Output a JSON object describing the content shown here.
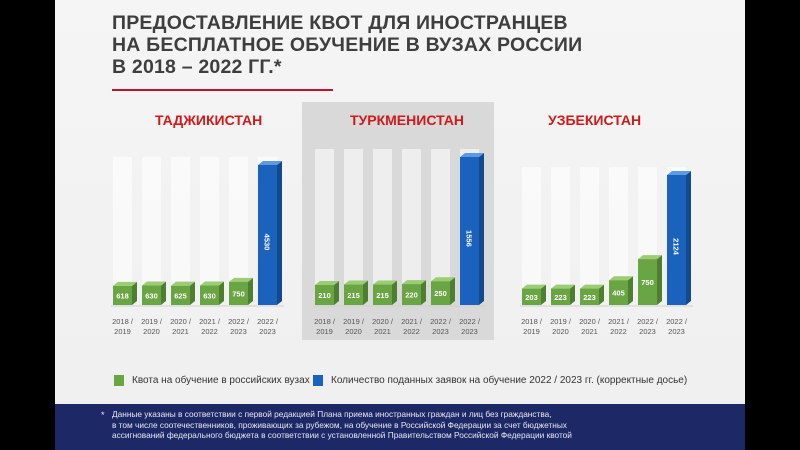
{
  "title_lines": [
    "ПРЕДОСТАВЛЕНИЕ КВОТ ДЛЯ ИНОСТРАНЦЕВ",
    "НА БЕСПЛАТНОЕ ОБУЧЕНИЕ В ВУЗАХ РОССИИ",
    "В 2018 – 2022 ГГ.*"
  ],
  "colors": {
    "accent_red": "#d21919",
    "quota_green": "#6aa543",
    "applications_blue": "#1b62bd",
    "footer_bg": "#1d2966"
  },
  "chart_data": [
    {
      "type": "bar",
      "title": "ТАДЖИКИСТАН",
      "categories": [
        "2018 / 2019",
        "2019 / 2020",
        "2020 / 2021",
        "2021 / 2022",
        "2022 / 2023",
        "2022 / 2023"
      ],
      "values": [
        618,
        630,
        625,
        630,
        750,
        4530
      ],
      "value_labels": [
        "618",
        "630",
        "625",
        "630",
        "750",
        "4530"
      ],
      "series_kind": [
        "quota",
        "quota",
        "quota",
        "quota",
        "quota",
        "applications"
      ]
    },
    {
      "type": "bar",
      "title": "ТУРКМЕНИСТАН",
      "categories": [
        "2018 / 2019",
        "2019 / 2020",
        "2020 / 2021",
        "2021 / 2022",
        "2022 / 2023",
        "2022 / 2023"
      ],
      "values": [
        210,
        215,
        215,
        220,
        250,
        1556
      ],
      "value_labels": [
        "210",
        "215",
        "215",
        "220",
        "250",
        "1556"
      ],
      "series_kind": [
        "quota",
        "quota",
        "quota",
        "quota",
        "quota",
        "applications"
      ]
    },
    {
      "type": "bar",
      "title": "УЗБЕКИСТАН",
      "categories": [
        "2018 / 2019",
        "2019 / 2020",
        "2020 / 2021",
        "2021 / 2022",
        "2022 / 2023",
        "2022 / 2023"
      ],
      "values": [
        203,
        223,
        223,
        405,
        750,
        2124
      ],
      "value_labels": [
        "203",
        "223",
        "223",
        "405",
        "750",
        "2124"
      ],
      "series_kind": [
        "quota",
        "quota",
        "quota",
        "quota",
        "quota",
        "applications"
      ]
    }
  ],
  "legend": {
    "quota": "Квота на обучение в российских вузах",
    "applications": "Количество поданных заявок на обучение 2022 / 2023 гг. (корректные досье)"
  },
  "footnote": {
    "marker": "*",
    "lines": [
      "Данные указаны в соответствии с первой редакцией Плана приема иностранных граждан и лиц без гражданства,",
      "в том числе соотечественников, проживающих за рубежом, на обучение в Российской Федерации за счет бюджетных",
      "ассигнований федерального бюджета в соответствии с установленной Правительством Российской Федерации квотой"
    ]
  }
}
